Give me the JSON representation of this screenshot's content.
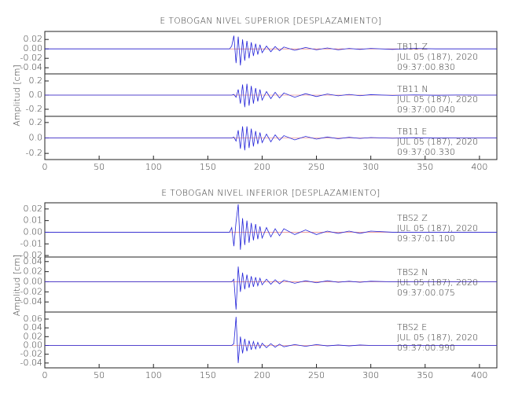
{
  "chart_data": [
    {
      "type": "line",
      "title": "E TOBOGAN NIVEL SUPERIOR [DESPLAZAMIENTO]",
      "ylabel": "Amplitud [cm]",
      "xlim": [
        0,
        416
      ],
      "xticks": [
        0,
        50,
        100,
        150,
        200,
        250,
        300,
        350,
        400
      ],
      "x": [
        0,
        40,
        80,
        120,
        160,
        170,
        172,
        174,
        176,
        178,
        180,
        182,
        184,
        186,
        188,
        190,
        192,
        194,
        196,
        198,
        200,
        204,
        208,
        212,
        216,
        220,
        230,
        240,
        250,
        260,
        270,
        280,
        290,
        300,
        320,
        340,
        360,
        380,
        400,
        416
      ],
      "traces": [
        {
          "color": "#2323d8",
          "ylim": [
            -0.053,
            0.037
          ],
          "yticks": [
            0.02,
            {
              "value": 0,
              "label": "0.00"
            },
            -0.02,
            -0.04
          ],
          "lines": [
            "TB11   Z",
            "JUL 05 (187), 2020",
            "09:37:00.830"
          ],
          "values": [
            0,
            0,
            0,
            0,
            0,
            0,
            0.006,
            0.028,
            -0.03,
            0.026,
            -0.035,
            0.02,
            -0.025,
            0.017,
            -0.02,
            0.014,
            -0.015,
            0.011,
            -0.012,
            0.009,
            -0.008,
            0.006,
            -0.006,
            0.005,
            -0.004,
            0.004,
            -0.003,
            0.003,
            -0.002,
            0.002,
            -0.002,
            0.001,
            -0.001,
            0.001,
            -0.001,
            0.001,
            0,
            0,
            0,
            0
          ]
        },
        {
          "color": "#2323d8",
          "ylim": [
            -0.3,
            0.3
          ],
          "yticks": [
            0.2,
            {
              "value": 0,
              "label": "0.0"
            },
            -0.2
          ],
          "lines": [
            "TB11   N",
            "JUL 05 (187), 2020",
            "09:37:00.040"
          ],
          "values": [
            0,
            0,
            0,
            0,
            0,
            0,
            0,
            0.01,
            -0.03,
            0.08,
            -0.12,
            0.15,
            -0.17,
            0.16,
            -0.15,
            0.13,
            -0.12,
            0.1,
            -0.09,
            0.08,
            -0.07,
            0.05,
            -0.05,
            0.04,
            -0.04,
            0.03,
            -0.03,
            0.02,
            -0.02,
            0.015,
            -0.01,
            0.01,
            -0.008,
            0.006,
            -0.004,
            0.003,
            -0.002,
            0.001,
            0,
            0
          ]
        },
        {
          "color": "#2323d8",
          "ylim": [
            -0.28,
            0.28
          ],
          "yticks": [
            0.2,
            {
              "value": 0,
              "label": "0.0"
            },
            -0.2
          ],
          "lines": [
            "TB11   E",
            "JUL 05 (187), 2020",
            "09:37:00.330"
          ],
          "values": [
            0,
            0,
            0,
            0,
            0,
            0,
            0,
            0.01,
            -0.04,
            0.1,
            -0.14,
            0.15,
            -0.16,
            0.15,
            -0.13,
            0.12,
            -0.11,
            0.09,
            -0.08,
            0.07,
            -0.06,
            0.05,
            -0.05,
            0.04,
            -0.03,
            0.03,
            -0.025,
            0.02,
            -0.015,
            0.012,
            -0.01,
            0.008,
            -0.006,
            0.005,
            -0.004,
            0.003,
            -0.002,
            0.001,
            0,
            0
          ]
        }
      ]
    },
    {
      "type": "line",
      "title": "E TOBOGAN NIVEL INFERIOR [DESPLAZAMIENTO]",
      "ylabel": "Amplitud [cm]",
      "xlim": [
        0,
        416
      ],
      "xticks": [
        0,
        50,
        100,
        150,
        200,
        250,
        300,
        350,
        400
      ],
      "x": [
        0,
        40,
        80,
        120,
        160,
        170,
        172,
        174,
        176,
        178,
        180,
        182,
        184,
        186,
        188,
        190,
        192,
        194,
        196,
        198,
        200,
        204,
        208,
        212,
        216,
        220,
        230,
        240,
        250,
        260,
        270,
        280,
        290,
        300,
        320,
        340,
        360,
        380,
        400,
        416
      ],
      "traces": [
        {
          "color": "#2323d8",
          "ylim": [
            -0.0213,
            0.0253
          ],
          "yticks": [
            0.02,
            0.01,
            {
              "value": 0,
              "label": "0.00"
            },
            -0.01,
            -0.02
          ],
          "lines": [
            "TBS2   Z",
            "JUL 05 (187), 2020",
            "09:37:01.100"
          ],
          "values": [
            0,
            0,
            0,
            0,
            0,
            0,
            0.004,
            -0.012,
            0.009,
            0.024,
            -0.015,
            0.012,
            -0.011,
            0.01,
            -0.009,
            0.008,
            -0.007,
            0.007,
            -0.006,
            0.005,
            -0.005,
            0.004,
            -0.004,
            0.003,
            -0.003,
            0.003,
            -0.002,
            0.002,
            -0.002,
            0.001,
            -0.001,
            0.001,
            -0.001,
            0.001,
            0,
            0,
            0,
            0,
            0,
            0
          ]
        },
        {
          "color": "#2323d8",
          "ylim": [
            -0.06,
            0.049
          ],
          "yticks": [
            0.04,
            0.02,
            {
              "value": 0,
              "label": "0.00"
            },
            -0.02,
            -0.04
          ],
          "lines": [
            "TBS2   N",
            "JUL 05 (187), 2020",
            "09:37:00.075"
          ],
          "values": [
            0,
            0,
            0,
            0,
            0,
            0,
            0,
            0.005,
            -0.055,
            0.03,
            -0.02,
            0.018,
            -0.015,
            0.014,
            -0.012,
            0.011,
            -0.01,
            0.009,
            -0.008,
            0.007,
            -0.006,
            0.005,
            -0.005,
            0.004,
            -0.004,
            0.003,
            -0.003,
            0.002,
            -0.002,
            0.002,
            -0.001,
            0.001,
            -0.001,
            0.001,
            0,
            0,
            0,
            0,
            0,
            0
          ]
        },
        {
          "color": "#2323d8",
          "ylim": [
            -0.051,
            0.076
          ],
          "yticks": [
            0.06,
            0.04,
            0.02,
            {
              "value": 0,
              "label": "0.00"
            },
            -0.02,
            -0.04
          ],
          "lines": [
            "TBS2   E",
            "JUL 05 (187), 2020",
            "09:37:00.990"
          ],
          "values": [
            0,
            0,
            0,
            0,
            0,
            0,
            0,
            0.004,
            0.065,
            -0.04,
            0.02,
            -0.018,
            0.015,
            -0.013,
            0.011,
            -0.01,
            0.009,
            -0.008,
            0.007,
            -0.006,
            0.005,
            -0.005,
            0.004,
            -0.004,
            0.003,
            -0.003,
            0.002,
            -0.002,
            0.002,
            -0.001,
            0.001,
            -0.001,
            0.001,
            0,
            0,
            0,
            0,
            0,
            0,
            0
          ]
        }
      ]
    }
  ]
}
